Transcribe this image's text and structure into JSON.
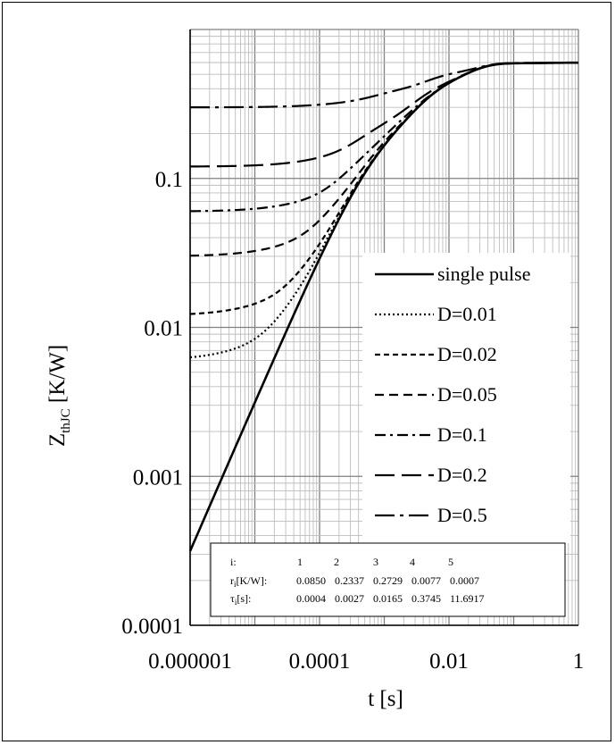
{
  "chart_data": {
    "type": "line",
    "xlabel": "t [s]",
    "ylabel_main": "Z",
    "ylabel_sub": "thJC",
    "ylabel_unit": " [K/W]",
    "xscale": "log",
    "yscale": "log",
    "xlim": [
      1e-06,
      1
    ],
    "ylim": [
      0.0001,
      1
    ],
    "grid": true,
    "legend_placement": "right",
    "x_ticks": [
      {
        "value": 1e-06,
        "label": "0.000001"
      },
      {
        "value": 0.0001,
        "label": "0.0001"
      },
      {
        "value": 0.01,
        "label": "0.01"
      },
      {
        "value": 1,
        "label": "1"
      }
    ],
    "y_ticks": [
      {
        "value": 0.0001,
        "label": "0.0001"
      },
      {
        "value": 0.001,
        "label": "0.001"
      },
      {
        "value": 0.01,
        "label": "0.01"
      },
      {
        "value": 0.1,
        "label": "0.1"
      }
    ],
    "thermal_model": {
      "r": [
        0.085,
        0.2337,
        0.2729,
        0.0077,
        0.0007
      ],
      "tau": [
        0.0004,
        0.0027,
        0.0165,
        0.3745,
        11.6917
      ]
    },
    "series": [
      {
        "name": "single pulse",
        "D": 0,
        "dash": "solid"
      },
      {
        "name": "D=0.01",
        "D": 0.01,
        "dash": "dot"
      },
      {
        "name": "D=0.02",
        "D": 0.02,
        "dash": "dash-short"
      },
      {
        "name": "D=0.05",
        "D": 0.05,
        "dash": "dash"
      },
      {
        "name": "D=0.1",
        "D": 0.1,
        "dash": "dash-dot"
      },
      {
        "name": "D=0.2",
        "D": 0.2,
        "dash": "long-dash"
      },
      {
        "name": "D=0.5",
        "D": 0.5,
        "dash": "long-dash-dot"
      }
    ],
    "table": {
      "row_headers": [
        "i:",
        "r_i[K/W]:",
        "τ_i[s]:"
      ],
      "index": [
        "1",
        "2",
        "3",
        "4",
        "5"
      ],
      "r_values": [
        "0.0850",
        "0.2337",
        "0.2729",
        "0.0077",
        "0.0007"
      ],
      "tau_values": [
        "0.0004",
        "0.0027",
        "0.0165",
        "0.3745",
        "11.6917"
      ]
    }
  }
}
